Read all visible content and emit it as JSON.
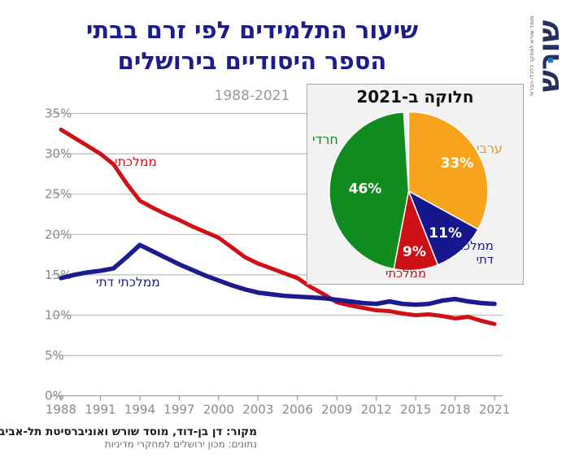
{
  "header": {
    "title_line1": "שיעור התלמידים לפי זרם בבתי",
    "title_line2": "הספר היסודיים בירושלים",
    "subtitle": "1988-2021"
  },
  "logo": {
    "name": "שורש",
    "caption": "מוסד שורש למחקר כלכלי-חברתי",
    "dot_color": "#2176d2",
    "text_color": "#26305e"
  },
  "chart_data": [
    {
      "type": "line",
      "title": "",
      "xlabel": "",
      "ylabel": "",
      "ylim": [
        0,
        35
      ],
      "ytick_step": 5,
      "grid": true,
      "x_ticks": [
        1988,
        1991,
        1994,
        1997,
        2000,
        2003,
        2006,
        2009,
        2012,
        2015,
        2018,
        2021
      ],
      "years": [
        1988,
        1989,
        1990,
        1991,
        1992,
        1993,
        1994,
        1995,
        1996,
        1997,
        1998,
        1999,
        2000,
        2001,
        2002,
        2003,
        2004,
        2005,
        2006,
        2007,
        2008,
        2009,
        2010,
        2011,
        2012,
        2013,
        2014,
        2015,
        2016,
        2017,
        2018,
        2019,
        2020,
        2021
      ],
      "series": [
        {
          "name": "ממלכתי",
          "color": "#cf1117",
          "width": 5,
          "values": [
            33.0,
            32.0,
            31.0,
            30.0,
            28.7,
            26.3,
            24.2,
            23.3,
            22.5,
            21.8,
            21.0,
            20.3,
            19.6,
            18.4,
            17.2,
            16.4,
            15.8,
            15.2,
            14.6,
            13.5,
            12.6,
            11.6,
            11.2,
            10.9,
            10.6,
            10.5,
            10.2,
            10.0,
            10.1,
            9.9,
            9.6,
            9.8,
            9.3,
            8.9
          ]
        },
        {
          "name": "ממלכתי דתי",
          "color": "#1b1b90",
          "width": 5.5,
          "values": [
            14.6,
            15.0,
            15.3,
            15.5,
            15.8,
            17.2,
            18.7,
            17.9,
            17.1,
            16.3,
            15.6,
            14.9,
            14.3,
            13.7,
            13.2,
            12.8,
            12.6,
            12.4,
            12.3,
            12.2,
            12.1,
            11.9,
            11.7,
            11.5,
            11.4,
            11.7,
            11.4,
            11.3,
            11.4,
            11.8,
            12.0,
            11.7,
            11.5,
            11.4
          ]
        }
      ],
      "annotations": [
        {
          "text": "ממלכתי",
          "year": 1993.7,
          "value": 28.5,
          "color": "#cc1016"
        },
        {
          "text": "ממלכתי דתי",
          "year": 1993.1,
          "value": 13.6,
          "color": "#1b1b90"
        }
      ]
    },
    {
      "type": "pie",
      "title": "חלוקה ב-2021",
      "legend_position": "around",
      "slices": [
        {
          "label": "ערבי",
          "value": 33,
          "color": "#f7a31c",
          "label_r": 0.71
        },
        {
          "label": "ממלכתי דתי",
          "value": 11,
          "color": "#17178c",
          "label_r": 0.7
        },
        {
          "label": "ממלכתי",
          "value": 9,
          "color": "#cc1016",
          "label_r": 0.76
        },
        {
          "label": "חרדי",
          "value": 46,
          "color": "#0f8b1f",
          "label_r": 0.55
        }
      ]
    }
  ],
  "source": {
    "line1": "מקור:  דן בן-דוד, מוסד שורש ואוניברסיטת תל-אביב",
    "line2": "נתונים: מכון ירושלים למחקרי מדיניות"
  }
}
